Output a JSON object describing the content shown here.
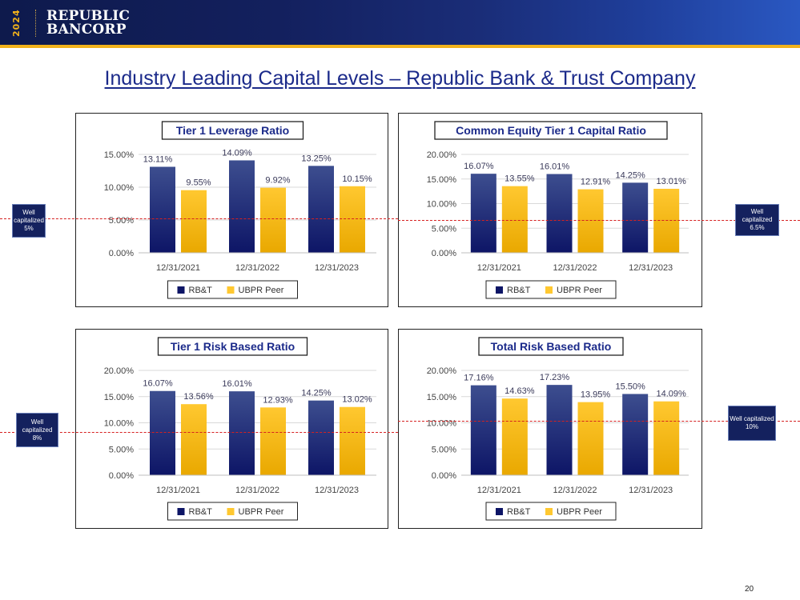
{
  "header": {
    "year": "2024",
    "logo_line1": "REPUBLIC",
    "logo_line2": "BANCORP"
  },
  "page_title": "Industry Leading Capital Levels – Republic Bank & Trust Company",
  "page_number": "20",
  "colors": {
    "rbt_top": "#3d4e8f",
    "rbt_bottom": "#0d1566",
    "peer_top": "#ffc830",
    "peer_bottom": "#e9a800",
    "threshold_line": "#d62020",
    "title_text": "#1b2a8a"
  },
  "well_capitalized": {
    "tl": {
      "text": "Well capitalized 5%"
    },
    "tr": {
      "text": "Well capitalized 6.5%"
    },
    "bl": {
      "text": "Well capitalized 8%"
    },
    "br": {
      "text": "Well capitalized 10%"
    }
  },
  "chart_data": [
    {
      "type": "bar",
      "title": "Tier 1 Leverage Ratio",
      "categories": [
        "12/31/2021",
        "12/31/2022",
        "12/31/2023"
      ],
      "series": [
        {
          "name": "RB&T",
          "values": [
            13.11,
            14.09,
            13.25
          ],
          "labels": [
            "13.11%",
            "14.09%",
            "13.25%"
          ]
        },
        {
          "name": "UBPR Peer",
          "values": [
            9.55,
            9.92,
            10.15
          ],
          "labels": [
            "9.55%",
            "9.92%",
            "10.15%"
          ]
        }
      ],
      "ylim": [
        0,
        15
      ],
      "yticks": [
        0,
        5,
        10,
        15
      ],
      "ytick_labels": [
        "0.00%",
        "5.00%",
        "10.00%",
        "15.00%"
      ],
      "threshold": 5,
      "grid": true,
      "legend": "bottom"
    },
    {
      "type": "bar",
      "title": "Common Equity Tier 1 Capital Ratio",
      "categories": [
        "12/31/2021",
        "12/31/2022",
        "12/31/2023"
      ],
      "series": [
        {
          "name": "RB&T",
          "values": [
            16.07,
            16.01,
            14.25
          ],
          "labels": [
            "16.07%",
            "16.01%",
            "14.25%"
          ]
        },
        {
          "name": "UBPR Peer",
          "values": [
            13.55,
            12.91,
            13.01
          ],
          "labels": [
            "13.55%",
            "12.91%",
            "13.01%"
          ]
        }
      ],
      "ylim": [
        0,
        20
      ],
      "yticks": [
        0,
        5,
        10,
        15,
        20
      ],
      "ytick_labels": [
        "0.00%",
        "5.00%",
        "10.00%",
        "15.00%",
        "20.00%"
      ],
      "threshold": 6.5,
      "grid": true,
      "legend": "bottom"
    },
    {
      "type": "bar",
      "title": "Tier 1 Risk Based Ratio",
      "categories": [
        "12/31/2021",
        "12/31/2022",
        "12/31/2023"
      ],
      "series": [
        {
          "name": "RB&T",
          "values": [
            16.07,
            16.01,
            14.25
          ],
          "labels": [
            "16.07%",
            "16.01%",
            "14.25%"
          ]
        },
        {
          "name": "UBPR Peer",
          "values": [
            13.56,
            12.93,
            13.02
          ],
          "labels": [
            "13.56%",
            "12.93%",
            "13.02%"
          ]
        }
      ],
      "ylim": [
        0,
        20
      ],
      "yticks": [
        0,
        5,
        10,
        15,
        20
      ],
      "ytick_labels": [
        "0.00%",
        "5.00%",
        "10.00%",
        "15.00%",
        "20.00%"
      ],
      "threshold": 8,
      "grid": true,
      "legend": "bottom"
    },
    {
      "type": "bar",
      "title": "Total Risk Based Ratio",
      "categories": [
        "12/31/2021",
        "12/31/2022",
        "12/31/2023"
      ],
      "series": [
        {
          "name": "RB&T",
          "values": [
            17.16,
            17.23,
            15.5
          ],
          "labels": [
            "17.16%",
            "17.23%",
            "15.50%"
          ]
        },
        {
          "name": "UBPR Peer",
          "values": [
            14.63,
            13.95,
            14.09
          ],
          "labels": [
            "14.63%",
            "13.95%",
            "14.09%"
          ]
        }
      ],
      "ylim": [
        0,
        20
      ],
      "yticks": [
        0,
        5,
        10,
        15,
        20
      ],
      "ytick_labels": [
        "0.00%",
        "5.00%",
        "10.00%",
        "15.00%",
        "20.00%"
      ],
      "threshold": 10,
      "grid": true,
      "legend": "bottom"
    }
  ]
}
